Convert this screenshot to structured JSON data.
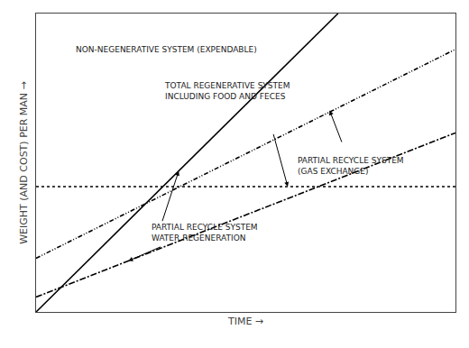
{
  "chart_data": {
    "type": "line",
    "xlabel": "TIME →",
    "ylabel": "WEIGHT (AND COST) PER MAN →",
    "xlim": [
      0,
      1
    ],
    "ylim": [
      0,
      1.0
    ],
    "tick_labels": false,
    "grid": false,
    "series": [
      {
        "color": "black",
        "line_style": "solid",
        "x": [
          0.0,
          0.72
        ],
        "values": [
          0.0,
          1.0
        ]
      },
      {
        "color": "black",
        "line_style": "dotted",
        "x": [
          0.0,
          1.0
        ],
        "values": [
          0.42,
          0.42
        ]
      },
      {
        "color": "black",
        "line_style": "dashdotdot",
        "x": [
          0.0,
          1.0
        ],
        "values": [
          0.18,
          0.88
        ]
      },
      {
        "color": "black",
        "line_style": "dashdot",
        "x": [
          0.0,
          1.0
        ],
        "values": [
          0.05,
          0.6
        ]
      }
    ],
    "annotations": [
      "NON-NEGENERATIVE SYSTEM (EXPENDABLE)",
      "TOTAL REGENERATIVE SYSTEM\nINCLUDING FOOD AND FECES",
      "PARTIAL RECYCLE SYSTEM\n(GAS EXCHANGE)",
      "PARTIAL RECYCLE SYSTEM\nWATER REGENERATION"
    ]
  }
}
